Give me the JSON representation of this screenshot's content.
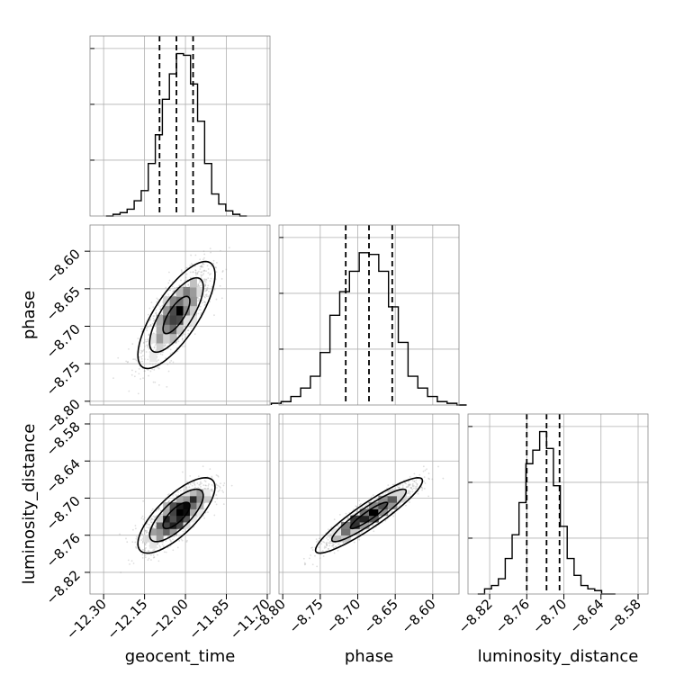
{
  "chart_data": {
    "type": "corner",
    "parameters": [
      {
        "name": "geocent_time",
        "label": "geocent_time",
        "range": [
          -12.35,
          -11.69
        ],
        "ticks": [
          -12.3,
          -12.15,
          -12.0,
          -11.85,
          -11.7
        ],
        "tick_labels": [
          "−12.30",
          "−12.15",
          "−12.00",
          "−11.85",
          "−11.70"
        ]
      },
      {
        "name": "phase",
        "label": "phase",
        "range": [
          -8.805,
          -8.565
        ],
        "ticks": [
          -8.8,
          -8.75,
          -8.7,
          -8.65,
          -8.6
        ],
        "tick_labels": [
          "−8.80",
          "−8.75",
          "−8.70",
          "−8.65",
          "−8.60"
        ]
      },
      {
        "name": "luminosity_distance",
        "label": "luminosity_distance",
        "range": [
          -8.855,
          -8.564
        ],
        "ticks": [
          -8.82,
          -8.76,
          -8.7,
          -8.64,
          -8.58
        ],
        "tick_labels": [
          "−8.82",
          "−8.76",
          "−8.70",
          "−8.64",
          "−8.58"
        ]
      }
    ],
    "quantiles": [
      [
        -12.095,
        -12.033,
        -11.972
      ],
      [
        -8.716,
        -8.685,
        -8.654
      ],
      [
        -8.76,
        -8.728,
        -8.707
      ]
    ],
    "histograms": [
      {
        "bins": 20,
        "counts": [
          0,
          0.01,
          0.02,
          0.04,
          0.09,
          0.15,
          0.31,
          0.48,
          0.69,
          0.84,
          0.96,
          0.95,
          0.78,
          0.56,
          0.31,
          0.13,
          0.07,
          0.03,
          0.01,
          0.0
        ]
      },
      {
        "bins": 20,
        "counts": [
          0.01,
          0.02,
          0.05,
          0.1,
          0.17,
          0.31,
          0.53,
          0.67,
          0.79,
          0.9,
          0.89,
          0.79,
          0.58,
          0.37,
          0.17,
          0.1,
          0.05,
          0.02,
          0.01,
          0.0
        ]
      },
      {
        "bins": 20,
        "counts": [
          0.0,
          0.03,
          0.05,
          0.09,
          0.21,
          0.35,
          0.54,
          0.77,
          0.85,
          0.96,
          0.86,
          0.64,
          0.4,
          0.21,
          0.11,
          0.05,
          0.03,
          0.02,
          0,
          0
        ]
      }
    ],
    "pair_correlations": {
      "geocent_time|phase": 0.75,
      "geocent_time|luminosity_distance": 0.75,
      "phase|luminosity_distance": 0.92
    },
    "contour_levels": [
      0.5,
      0.9
    ],
    "grid": true,
    "colors": {
      "line": "#000000",
      "scatter": "#a0a0a0",
      "grid": "#b0b0b0"
    }
  }
}
